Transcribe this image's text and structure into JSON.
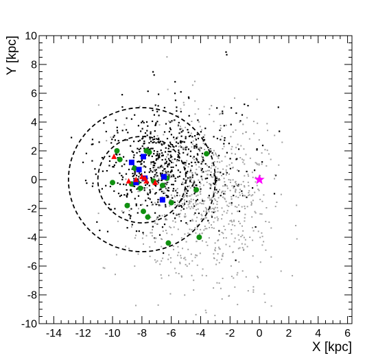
{
  "chart_data": {
    "type": "scatter",
    "xlabel": "X [kpc]",
    "ylabel": "Y [kpc]",
    "xlim": [
      -15,
      6.3
    ],
    "ylim": [
      -10,
      10
    ],
    "x_ticks": [
      -14,
      -12,
      -10,
      -8,
      -6,
      -4,
      -2,
      0,
      2,
      4,
      6
    ],
    "y_ticks": [
      -10,
      -8,
      -6,
      -4,
      -2,
      0,
      2,
      4,
      6,
      8,
      10
    ],
    "grid": false,
    "colors": {
      "black_points": "#000000",
      "grey_points": "#a0a0a0",
      "green_circles": "#109010",
      "blue_squares": "#0000ff",
      "red_triangles": "#ff0000",
      "star": "#ff00ff",
      "circles": "#000000"
    },
    "circles": [
      {
        "center": [
          -8,
          0
        ],
        "radius": 5,
        "style": "dashed"
      },
      {
        "center": [
          -8,
          0
        ],
        "radius": 3,
        "style": "dashed"
      }
    ],
    "series": [
      {
        "marker": "star",
        "color": "#ff00ff",
        "points": [
          [
            0,
            0
          ]
        ]
      },
      {
        "marker": "circle",
        "color": "#109010",
        "points": [
          [
            -9.7,
            2.0
          ],
          [
            -9.5,
            1.4
          ],
          [
            -7.7,
            2.0
          ],
          [
            -7.5,
            1.9
          ],
          [
            -3.6,
            1.8
          ],
          [
            -8.5,
            0.8
          ],
          [
            -10.0,
            -0.2
          ],
          [
            -8.3,
            -0.2
          ],
          [
            -8.7,
            -0.3
          ],
          [
            -7.2,
            -0.1
          ],
          [
            -6.6,
            -0.4
          ],
          [
            -4.3,
            -0.7
          ],
          [
            -9.0,
            -1.8
          ],
          [
            -7.9,
            -2.2
          ],
          [
            -7.6,
            -2.6
          ],
          [
            -6.0,
            -1.6
          ],
          [
            -6.2,
            -4.4
          ],
          [
            -4.1,
            -4.0
          ],
          [
            -6.3,
            0.1
          ],
          [
            -8.1,
            -0.6
          ]
        ]
      },
      {
        "marker": "square",
        "color": "#0000ff",
        "points": [
          [
            -8.7,
            1.2
          ],
          [
            -7.9,
            1.6
          ],
          [
            -8.2,
            0.7
          ],
          [
            -6.5,
            0.2
          ],
          [
            -6.6,
            -1.4
          ],
          [
            -7.8,
            0.1
          ],
          [
            -8.4,
            -0.2
          ]
        ]
      },
      {
        "marker": "triangle",
        "color": "#ff0000",
        "points": [
          [
            -9.9,
            1.6
          ],
          [
            -8.4,
            0.0
          ],
          [
            -8.0,
            0.2
          ],
          [
            -7.7,
            -0.1
          ],
          [
            -7.1,
            -0.2
          ],
          [
            -8.9,
            -0.1
          ],
          [
            -7.8,
            0.1
          ]
        ]
      }
    ]
  }
}
